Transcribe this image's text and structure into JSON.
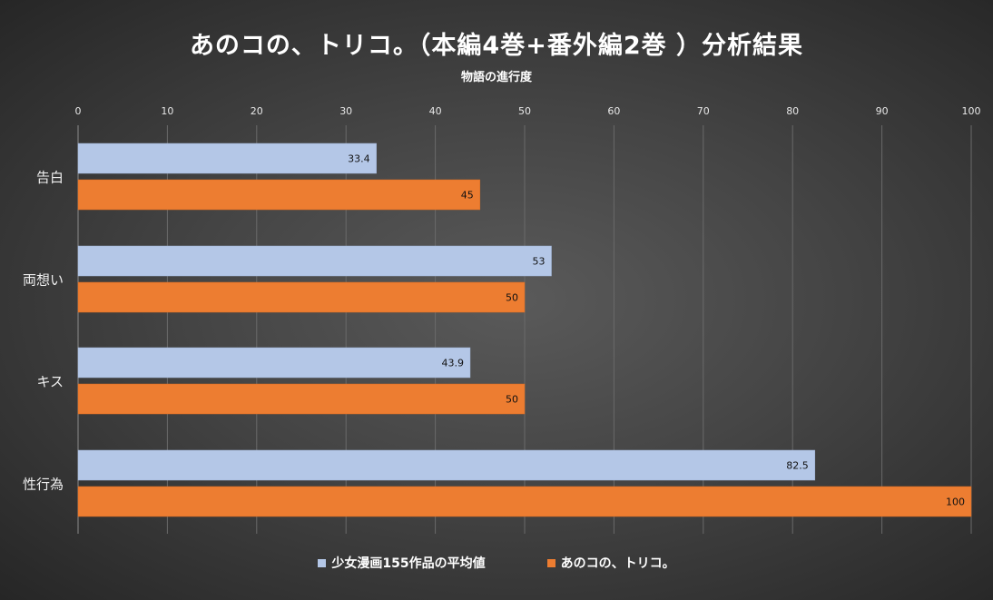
{
  "chart_data": {
    "type": "bar",
    "orientation": "horizontal",
    "title": "あのコの、トリコ。（本編4巻+番外編2巻 ）分析結果",
    "xlabel": "物語の進行度",
    "ylabel": "",
    "xlim": [
      0,
      100
    ],
    "ticks": [
      0,
      10,
      20,
      30,
      40,
      50,
      60,
      70,
      80,
      90,
      100
    ],
    "grid": true,
    "legend_position": "bottom",
    "categories": [
      "告白",
      "両想い",
      "キス",
      "性行為"
    ],
    "series": [
      {
        "name": "少女漫画155作品の平均値",
        "color": "#b4c7e7",
        "values": [
          33.4,
          53,
          43.9,
          82.5
        ],
        "labels": [
          "33.4",
          "53",
          "43.9",
          "82.5"
        ]
      },
      {
        "name": "あのコの、トリコ。",
        "color": "#ed7d31",
        "values": [
          45,
          50,
          50,
          100
        ],
        "labels": [
          "45",
          "50",
          "50",
          "100"
        ]
      }
    ]
  }
}
